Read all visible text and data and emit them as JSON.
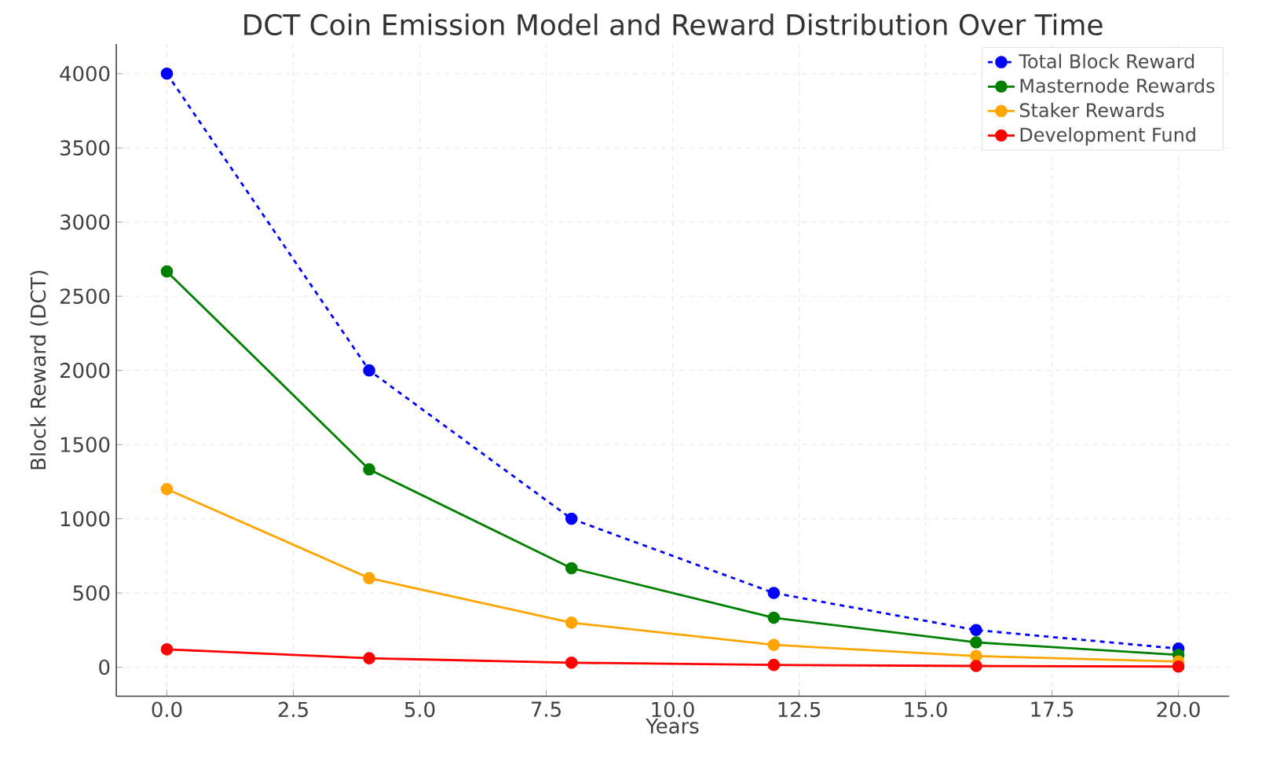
{
  "chart_data": {
    "type": "line",
    "title": "DCT Coin Emission Model and Reward Distribution Over Time",
    "xlabel": "Years",
    "ylabel": "Block Reward (DCT)",
    "x": [
      0,
      4,
      8,
      12,
      16,
      20
    ],
    "series": [
      {
        "name": "Total Block Reward",
        "color": "#0000ff",
        "line_style": "dashed",
        "values": [
          4000,
          2000,
          1000,
          500,
          250,
          125
        ]
      },
      {
        "name": "Masternode Rewards",
        "color": "#008000",
        "line_style": "solid",
        "values": [
          2667,
          1333,
          667,
          333,
          167,
          83
        ]
      },
      {
        "name": "Staker Rewards",
        "color": "#ffa500",
        "line_style": "solid",
        "values": [
          1200,
          600,
          300,
          150,
          75,
          38
        ]
      },
      {
        "name": "Development Fund",
        "color": "#ff0000",
        "line_style": "solid",
        "values": [
          120,
          60,
          30,
          15,
          8,
          4
        ]
      }
    ],
    "xlim": [
      -1,
      21
    ],
    "ylim": [
      -196,
      4200
    ],
    "xticks": [
      {
        "value": 0,
        "label": "0.0"
      },
      {
        "value": 2.5,
        "label": "2.5"
      },
      {
        "value": 5,
        "label": "5.0"
      },
      {
        "value": 7.5,
        "label": "7.5"
      },
      {
        "value": 10,
        "label": "10.0"
      },
      {
        "value": 12.5,
        "label": "12.5"
      },
      {
        "value": 15,
        "label": "15.0"
      },
      {
        "value": 17.5,
        "label": "17.5"
      },
      {
        "value": 20,
        "label": "20.0"
      }
    ],
    "yticks": [
      0,
      500,
      1000,
      1500,
      2000,
      2500,
      3000,
      3500,
      4000
    ],
    "grid": true,
    "legend": "top right",
    "marker": "circle"
  }
}
